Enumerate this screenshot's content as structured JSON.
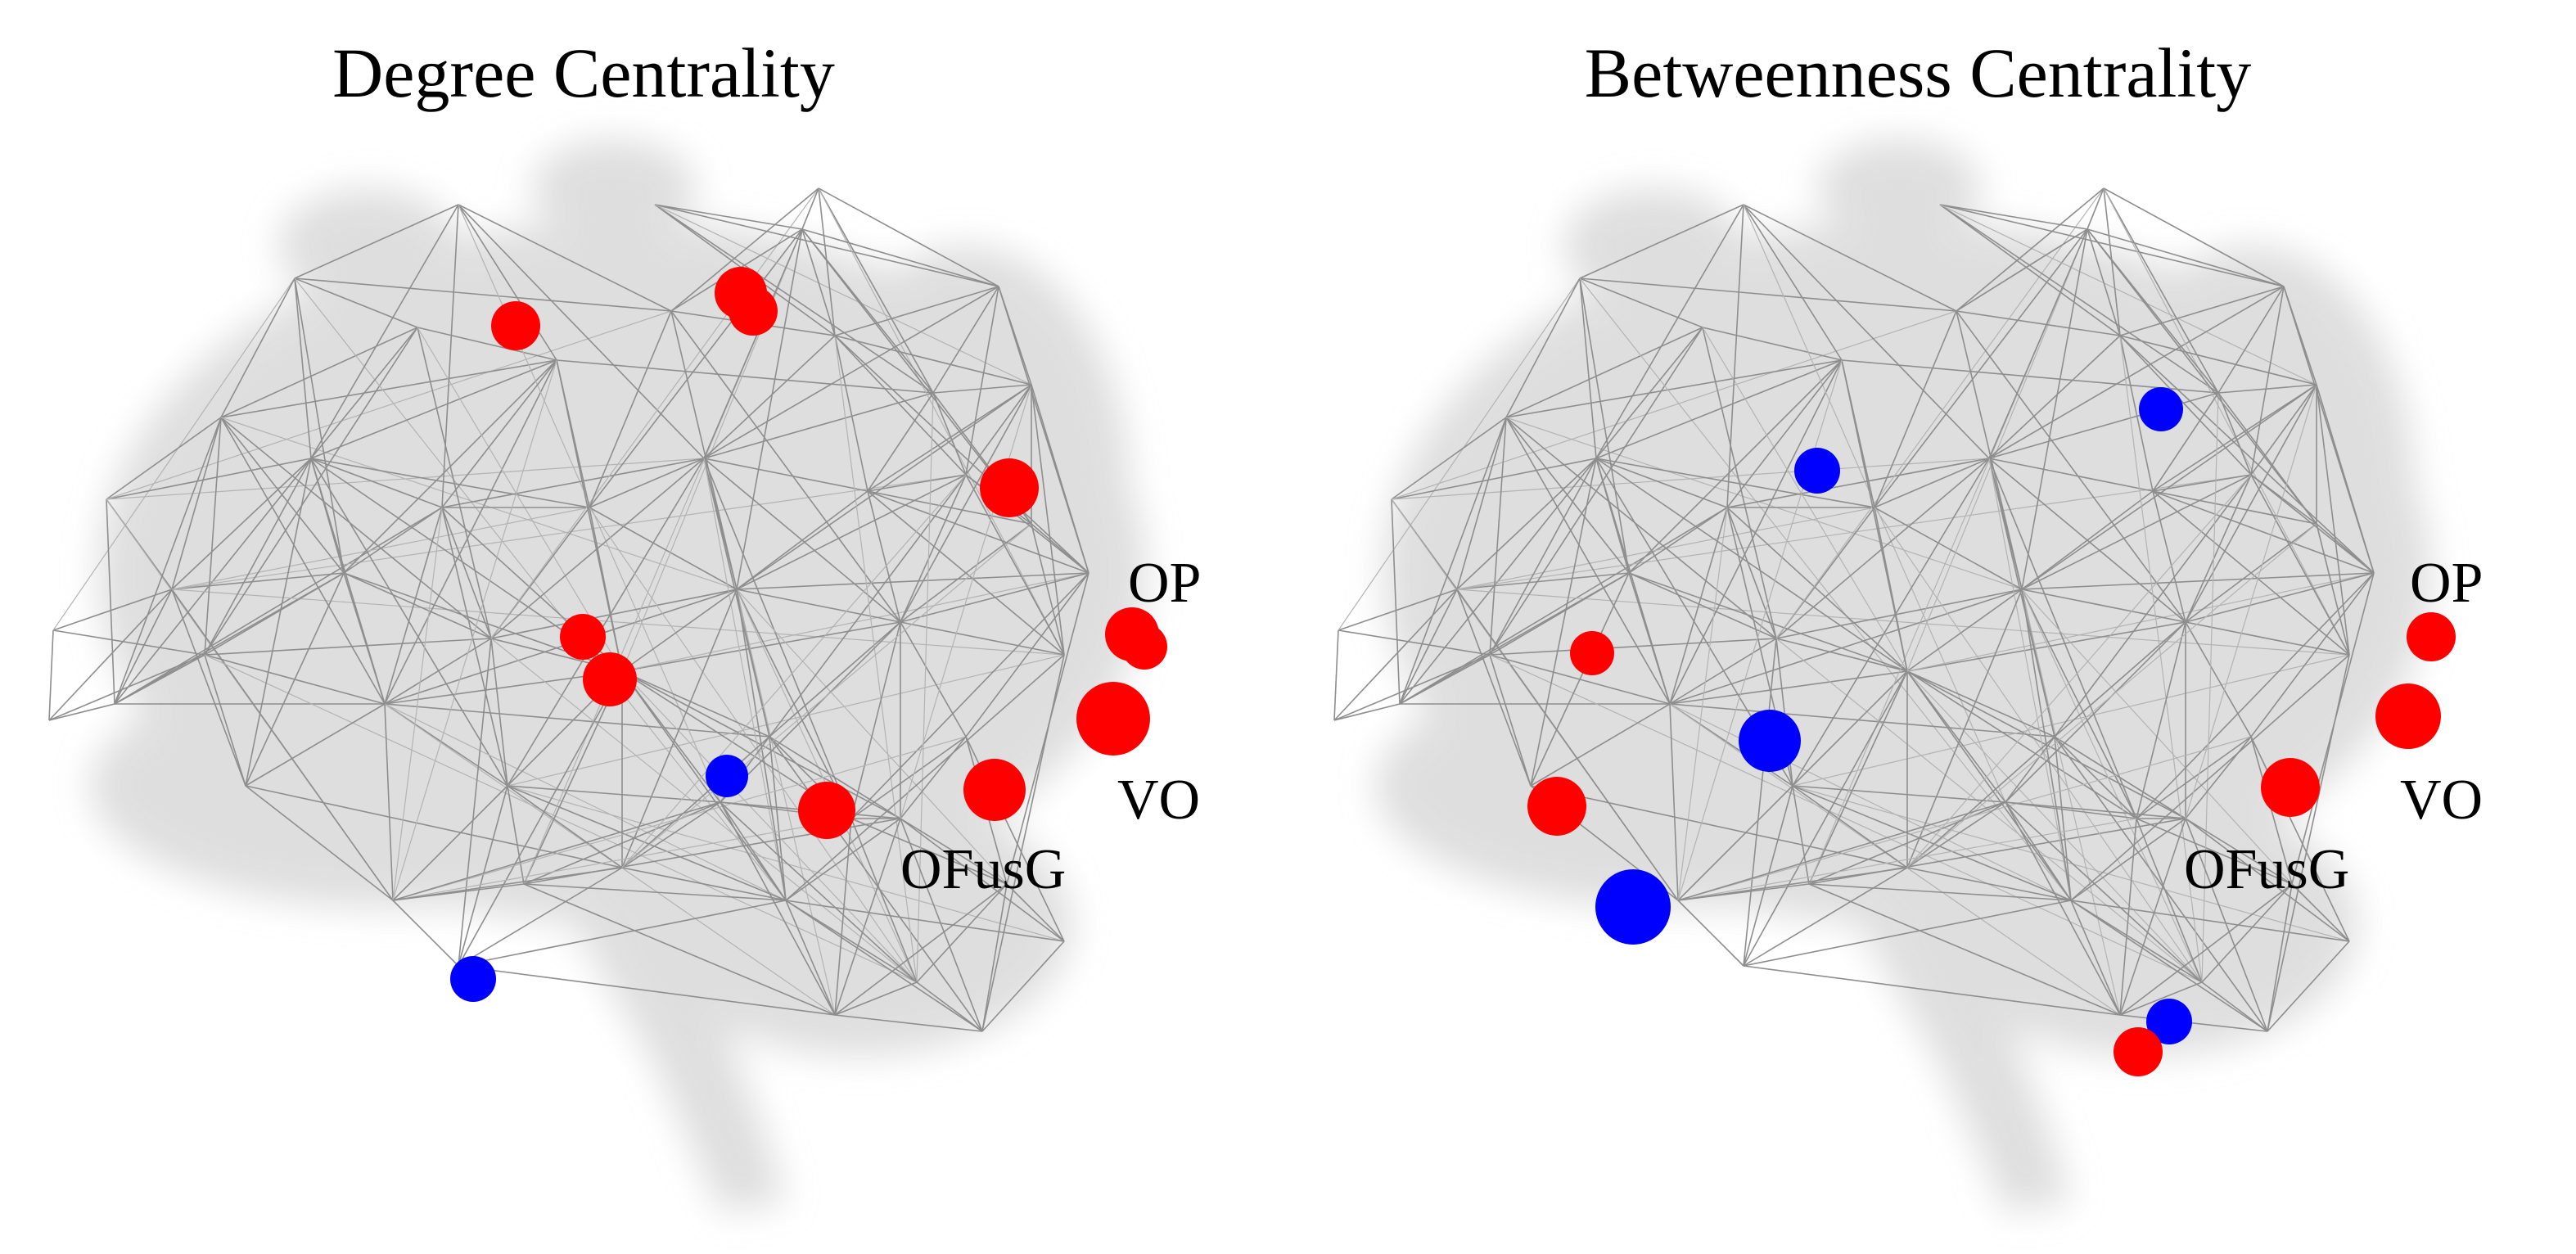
{
  "panels": [
    {
      "title": "Degree Centrality",
      "labels": [
        "OP",
        "VO",
        "OFusG"
      ]
    },
    {
      "title": "Betweenness Centrality",
      "labels": [
        "OP",
        "VO",
        "OFusG"
      ]
    }
  ],
  "colors": {
    "high_node": "#ff0000",
    "low_node": "#0000ff",
    "edge": "#8e8e8e",
    "brain_shadow": "#d9d9d9"
  }
}
